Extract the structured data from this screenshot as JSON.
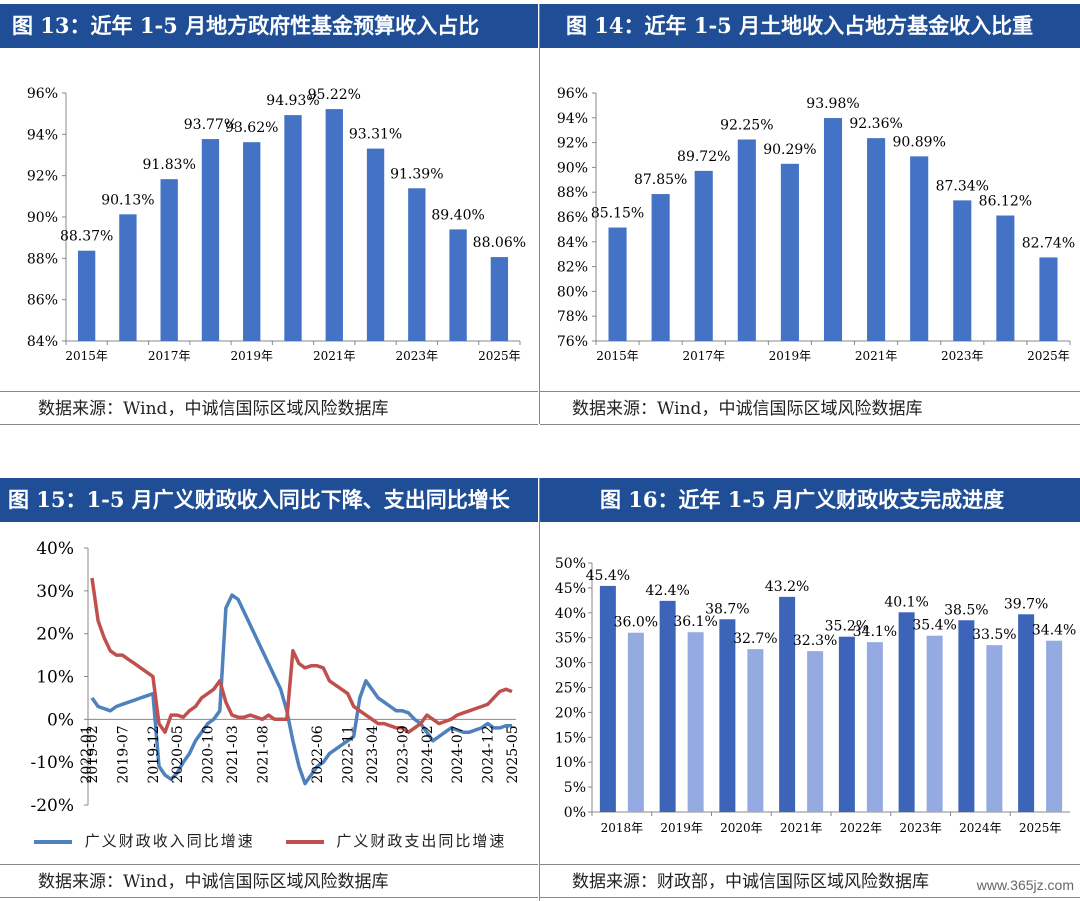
{
  "panels": {
    "p13": {
      "title": "图 13：近年 1-5 月地方政府性基金预算收入占比",
      "source": "数据来源：Wind，中诚信国际区域风险数据库"
    },
    "p14": {
      "title": "图 14：近年 1-5 月土地收入占地方基金收入比重",
      "source": "数据来源：Wind，中诚信国际区域风险数据库"
    },
    "p15": {
      "title": "图 15：1-5 月广义财政收入同比下降、支出同比增长",
      "source": "数据来源：Wind，中诚信国际区域风险数据库"
    },
    "p16": {
      "title": "图 16：近年 1-5 月广义财政收支完成进度",
      "source": "数据来源：财政部，中诚信国际区域风险数据库"
    }
  },
  "watermark": "www.365jz.com",
  "chart_data": [
    {
      "id": "fig13",
      "type": "bar",
      "categories": [
        "2015年",
        "2016年",
        "2017年",
        "2018年",
        "2019年",
        "2020年",
        "2021年",
        "2022年",
        "2023年",
        "2024年",
        "2025年"
      ],
      "tick_labels": [
        "2015年",
        "2017年",
        "2019年",
        "2021年",
        "2023年",
        "2025年"
      ],
      "values": [
        88.37,
        90.13,
        91.83,
        93.77,
        93.62,
        94.93,
        95.22,
        93.31,
        91.39,
        89.4,
        88.06
      ],
      "data_labels": [
        "88.37%",
        "90.13%",
        "91.83%",
        "93.77%",
        "93.62%",
        "94.93%",
        "95.22%",
        "93.31%",
        "91.39%",
        "89.40%",
        "88.06%"
      ],
      "ylim": [
        84,
        96
      ],
      "yticks": [
        84,
        86,
        88,
        90,
        92,
        94,
        96
      ],
      "ytick_labels": [
        "84%",
        "86%",
        "88%",
        "90%",
        "92%",
        "94%",
        "96%"
      ],
      "color": "#4472c4",
      "grid": false
    },
    {
      "id": "fig14",
      "type": "bar",
      "categories": [
        "2015年",
        "2016年",
        "2017年",
        "2018年",
        "2019年",
        "2020年",
        "2021年",
        "2022年",
        "2023年",
        "2024年",
        "2025年"
      ],
      "tick_labels": [
        "2015年",
        "2017年",
        "2019年",
        "2021年",
        "2023年",
        "2025年"
      ],
      "values": [
        85.15,
        87.85,
        89.72,
        92.25,
        90.29,
        93.98,
        92.36,
        90.89,
        87.34,
        86.12,
        82.74
      ],
      "data_labels": [
        "85.15%",
        "87.85%",
        "89.72%",
        "92.25%",
        "90.29%",
        "93.98%",
        "92.36%",
        "90.89%",
        "87.34%",
        "86.12%",
        "82.74%"
      ],
      "ylim": [
        76,
        96
      ],
      "yticks": [
        76,
        78,
        80,
        82,
        84,
        86,
        88,
        90,
        92,
        94,
        96
      ],
      "ytick_labels": [
        "76%",
        "78%",
        "80%",
        "82%",
        "84%",
        "86%",
        "88%",
        "90%",
        "92%",
        "94%",
        "96%"
      ],
      "color": "#4472c4",
      "grid": false
    },
    {
      "id": "fig15",
      "type": "line",
      "x": [
        "2019-02",
        "2019-03",
        "2019-04",
        "2019-05",
        "2019-06",
        "2019-07",
        "2019-08",
        "2019-09",
        "2019-10",
        "2019-11",
        "2019-12",
        "2020-02",
        "2020-03",
        "2020-04",
        "2020-05",
        "2020-06",
        "2020-07",
        "2020-08",
        "2020-09",
        "2020-10",
        "2020-11",
        "2020-12",
        "2021-02",
        "2021-03",
        "2021-04",
        "2021-05",
        "2021-06",
        "2021-07",
        "2021-08",
        "2021-09",
        "2021-10",
        "2021-11",
        "2021-12",
        "2022-02",
        "2022-03",
        "2022-04",
        "2022-05",
        "2022-06",
        "2022-07",
        "2022-08",
        "2022-09",
        "2022-10",
        "2022-11",
        "2022-12",
        "2023-02",
        "2023-03",
        "2023-04",
        "2023-05",
        "2023-06",
        "2023-07",
        "2023-08",
        "2023-09",
        "2023-10",
        "2023-11",
        "2023-12",
        "2024-02",
        "2024-03",
        "2024-04",
        "2024-05",
        "2024-06",
        "2024-07",
        "2024-08",
        "2024-09",
        "2024-10",
        "2024-11",
        "2024-12",
        "2025-02",
        "2025-03",
        "2025-04",
        "2025-05"
      ],
      "tick_labels": [
        "2019-02",
        "2019-07",
        "2019-12",
        "2020-05",
        "2020-10",
        "2021-03",
        "2021-08",
        "2022-01",
        "2022-06",
        "2022-11",
        "2023-04",
        "2023-09",
        "2024-02",
        "2024-07",
        "2024-12",
        "2025-05"
      ],
      "series": [
        {
          "name": "广义财政收入同比增速",
          "color": "#4f81bd",
          "values": [
            5,
            3,
            2.5,
            2,
            3,
            3.5,
            4,
            4.5,
            5,
            5.5,
            6,
            -11,
            -13,
            -14,
            -12.5,
            -10,
            -8,
            -5,
            -3,
            -1,
            0,
            2,
            26,
            29,
            28,
            25,
            22,
            19,
            16,
            13,
            10,
            7,
            2,
            -5,
            -11,
            -15,
            -13,
            -11,
            -10,
            -8,
            -7,
            -6,
            -5,
            -4,
            5,
            9,
            7,
            5,
            4,
            3,
            2,
            2,
            1.5,
            0,
            -1,
            -3,
            -5,
            -4,
            -3,
            -2,
            -2.5,
            -3,
            -3,
            -2.5,
            -2,
            -1,
            -2,
            -2,
            -1.5,
            -1.5
          ]
        },
        {
          "name": "广义财政支出同比增速",
          "color": "#c0504d",
          "values": [
            33,
            23,
            19,
            16,
            15,
            15,
            14,
            13,
            12,
            11,
            10,
            -1,
            -3,
            1,
            1,
            0.5,
            2,
            3,
            5,
            6,
            7,
            9,
            4,
            1,
            0.5,
            0.5,
            1,
            0.5,
            0,
            1,
            0,
            0,
            0,
            16,
            13,
            12,
            12.5,
            12.5,
            12,
            9,
            8,
            7,
            6,
            3,
            2,
            1,
            0,
            -1,
            -1,
            -1.5,
            -2,
            -2,
            -3,
            -2,
            -1,
            1,
            0,
            -1,
            -0.5,
            0,
            1,
            1.5,
            2,
            2.5,
            3,
            3.5,
            5,
            6.5,
            7,
            6.5
          ]
        }
      ],
      "ylim": [
        -20,
        40
      ],
      "yticks": [
        -20,
        -10,
        0,
        10,
        20,
        30,
        40
      ],
      "ytick_labels": [
        "-20%",
        "-10%",
        "0%",
        "10%",
        "20%",
        "30%",
        "40%"
      ],
      "legend": "bottom",
      "grid": false
    },
    {
      "id": "fig16",
      "type": "bar",
      "categories": [
        "2018年",
        "2019年",
        "2020年",
        "2021年",
        "2022年",
        "2023年",
        "2024年",
        "2025年"
      ],
      "series": [
        {
          "values": [
            45.4,
            42.4,
            38.7,
            43.2,
            35.2,
            40.1,
            38.5,
            39.7
          ],
          "data_labels": [
            "45.4%",
            "42.4%",
            "38.7%",
            "43.2%",
            "35.2%",
            "40.1%",
            "38.5%",
            "39.7%"
          ],
          "color": "#3c64b8"
        },
        {
          "values": [
            36.0,
            36.1,
            32.7,
            32.3,
            34.1,
            35.4,
            33.5,
            34.4
          ],
          "data_labels": [
            "36.0%",
            "36.1%",
            "32.7%",
            "32.3%",
            "34.1%",
            "35.4%",
            "33.5%",
            "34.4%"
          ],
          "color": "#94aae0"
        }
      ],
      "ylim": [
        0,
        50
      ],
      "yticks": [
        0,
        5,
        10,
        15,
        20,
        25,
        30,
        35,
        40,
        45,
        50
      ],
      "ytick_labels": [
        "0%",
        "5%",
        "10%",
        "15%",
        "20%",
        "25%",
        "30%",
        "35%",
        "40%",
        "45%",
        "50%"
      ],
      "grid": false
    }
  ]
}
